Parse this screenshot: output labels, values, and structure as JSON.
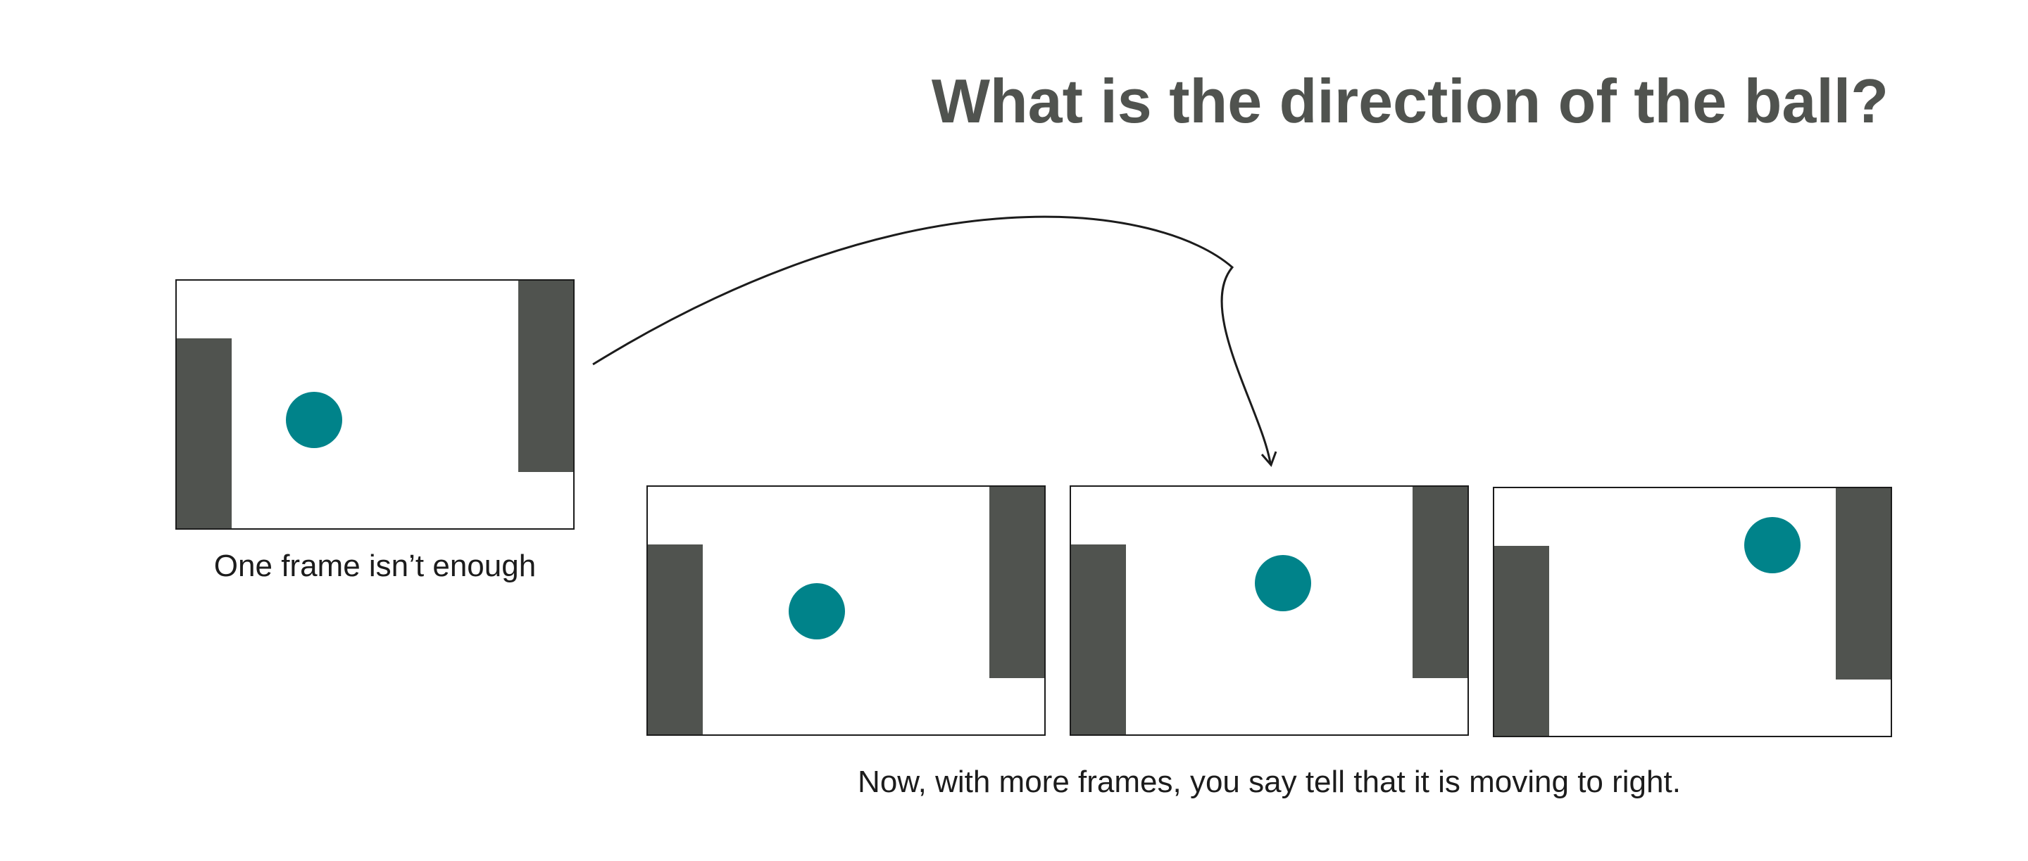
{
  "title": "What is the direction of the ball?",
  "single_frame_caption": "One frame isn’t enough",
  "multi_frame_caption": "Now, with more frames, you say tell that it is moving to right.",
  "colors": {
    "paddle": "#50534f",
    "ball": "#00838a",
    "title": "#50534f",
    "frame_border": "#1c1c1c",
    "arrow": "#1c1c1c"
  },
  "scene": {
    "frames_shown_single": 1,
    "frames_shown_sequence": 3,
    "ball_direction": "right"
  }
}
